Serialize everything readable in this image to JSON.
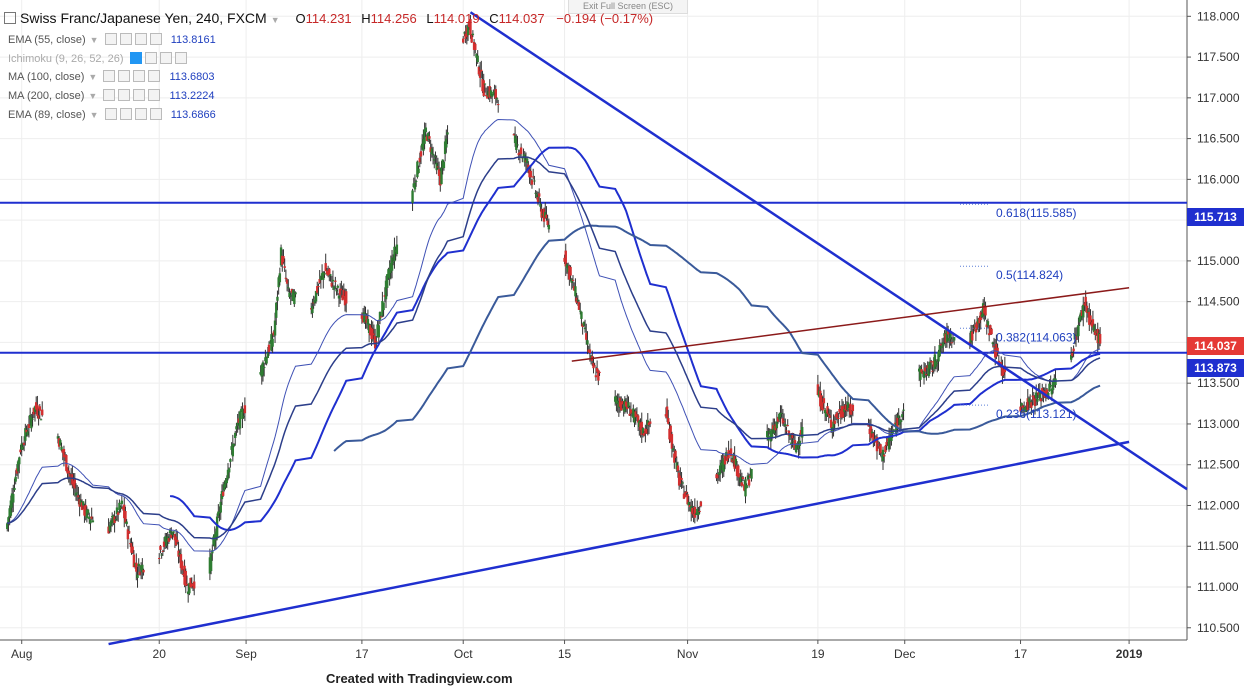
{
  "window": {
    "exit_fullscreen": "Exit Full Screen (ESC)",
    "footer": "Created with Tradingview.com"
  },
  "header": {
    "title": "Swiss Franc/Japanese Yen, 240, FXCM",
    "open_label": "O",
    "open": "114.231",
    "high_label": "H",
    "high": "114.256",
    "low_label": "L",
    "low": "114.019",
    "close_label": "C",
    "close": "114.037",
    "change": "−0.194 (−0.17%)"
  },
  "indicators": [
    {
      "name": "EMA (55, close)",
      "value": "113.8161"
    },
    {
      "name": "Ichimoku (9, 26, 52, 26)",
      "value": ""
    },
    {
      "name": "MA (100, close)",
      "value": "113.6803"
    },
    {
      "name": "MA (200, close)",
      "value": "113.2224"
    },
    {
      "name": "EMA (89, close)",
      "value": "113.6866"
    }
  ],
  "price_tags": [
    {
      "label": "115.713",
      "price": 115.713,
      "color": "#1f2fcf"
    },
    {
      "label": "114.037",
      "price": 114.037,
      "color": "#e53935"
    },
    {
      "label": "113.873",
      "price": 113.873,
      "color": "#1f2fcf"
    }
  ],
  "chart_data": {
    "type": "candlestick",
    "y_axis": {
      "ylim": [
        110.35,
        118.2
      ],
      "ticks": [
        "118.000",
        "117.500",
        "117.000",
        "116.500",
        "116.000",
        "115.500",
        "115.000",
        "114.500",
        "114.000",
        "113.500",
        "113.000",
        "112.500",
        "112.000",
        "111.500",
        "111.000",
        "110.500"
      ],
      "tick_values": [
        118.0,
        117.5,
        117.0,
        116.5,
        116.0,
        115.5,
        115.0,
        114.5,
        114.0,
        113.5,
        113.0,
        112.5,
        112.0,
        111.5,
        111.0,
        110.5
      ]
    },
    "x_axis": {
      "labels": [
        "Aug",
        "20",
        "Sep",
        "17",
        "Oct",
        "15",
        "Nov",
        "19",
        "Dec",
        "17",
        "2019"
      ],
      "label_dates": [
        "2018-08-01",
        "2018-08-20",
        "2018-09-01",
        "2018-09-17",
        "2018-10-01",
        "2018-10-15",
        "2018-11-01",
        "2018-11-19",
        "2018-12-01",
        "2018-12-17",
        "2019-01-01"
      ],
      "range": [
        "2018-07-29",
        "2019-01-09"
      ]
    },
    "close_path": [
      [
        "2018-07-30",
        111.7
      ],
      [
        "2018-08-01",
        112.7
      ],
      [
        "2018-08-03",
        113.2
      ],
      [
        "2018-08-06",
        112.9
      ],
      [
        "2018-08-08",
        112.3
      ],
      [
        "2018-08-10",
        111.9
      ],
      [
        "2018-08-13",
        111.7
      ],
      [
        "2018-08-15",
        112.0
      ],
      [
        "2018-08-17",
        111.2
      ],
      [
        "2018-08-20",
        111.4
      ],
      [
        "2018-08-22",
        111.7
      ],
      [
        "2018-08-24",
        111.0
      ],
      [
        "2018-08-27",
        111.2
      ],
      [
        "2018-08-29",
        112.2
      ],
      [
        "2018-08-31",
        113.0
      ],
      [
        "2018-09-03",
        113.6
      ],
      [
        "2018-09-05",
        114.1
      ],
      [
        "2018-09-06",
        115.1
      ],
      [
        "2018-09-07",
        114.6
      ],
      [
        "2018-09-10",
        114.4
      ],
      [
        "2018-09-12",
        114.9
      ],
      [
        "2018-09-14",
        114.6
      ],
      [
        "2018-09-17",
        114.4
      ],
      [
        "2018-09-19",
        114.0
      ],
      [
        "2018-09-21",
        114.9
      ],
      [
        "2018-09-24",
        115.8
      ],
      [
        "2018-09-26",
        116.6
      ],
      [
        "2018-09-28",
        116.0
      ],
      [
        "2018-10-01",
        117.7
      ],
      [
        "2018-10-02",
        117.9
      ],
      [
        "2018-10-04",
        117.1
      ],
      [
        "2018-10-06",
        117.0
      ],
      [
        "2018-10-08",
        116.5
      ],
      [
        "2018-10-10",
        116.2
      ],
      [
        "2018-10-12",
        115.6
      ],
      [
        "2018-10-15",
        115.1
      ],
      [
        "2018-10-17",
        114.5
      ],
      [
        "2018-10-19",
        113.7
      ],
      [
        "2018-10-22",
        113.3
      ],
      [
        "2018-10-24",
        113.2
      ],
      [
        "2018-10-26",
        112.9
      ],
      [
        "2018-10-29",
        113.2
      ],
      [
        "2018-10-31",
        112.3
      ],
      [
        "2018-11-02",
        111.9
      ],
      [
        "2018-11-05",
        112.3
      ],
      [
        "2018-11-07",
        112.7
      ],
      [
        "2018-11-09",
        112.2
      ],
      [
        "2018-11-12",
        112.8
      ],
      [
        "2018-11-14",
        113.1
      ],
      [
        "2018-11-16",
        112.7
      ],
      [
        "2018-11-19",
        113.4
      ],
      [
        "2018-11-21",
        113.0
      ],
      [
        "2018-11-23",
        113.2
      ],
      [
        "2018-11-26",
        113.0
      ],
      [
        "2018-11-28",
        112.6
      ],
      [
        "2018-11-30",
        113.0
      ],
      [
        "2018-12-03",
        113.6
      ],
      [
        "2018-12-05",
        113.7
      ],
      [
        "2018-12-07",
        114.1
      ],
      [
        "2018-12-10",
        114.0
      ],
      [
        "2018-12-12",
        114.4
      ],
      [
        "2018-12-14",
        113.8
      ],
      [
        "2018-12-17",
        113.2
      ],
      [
        "2018-12-19",
        113.3
      ],
      [
        "2018-12-21",
        113.4
      ],
      [
        "2018-12-24",
        113.8
      ],
      [
        "2018-12-26",
        114.5
      ],
      [
        "2018-12-27",
        114.2
      ],
      [
        "2018-12-28",
        114.04
      ]
    ],
    "moving_averages": [
      {
        "name": "EMA (55, close)",
        "value": 113.8161
      },
      {
        "name": "MA (100, close)",
        "value": 113.6803
      },
      {
        "name": "MA (200, close)",
        "value": 113.2224
      },
      {
        "name": "EMA (89, close)",
        "value": 113.6866
      }
    ],
    "fibonacci": [
      {
        "label": "0.618(115.585)",
        "price": 115.585
      },
      {
        "label": "0.5(114.824)",
        "price": 114.824
      },
      {
        "label": "0.382(114.063)",
        "price": 114.063
      },
      {
        "label": "0.236(113.121)",
        "price": 113.121
      }
    ],
    "horizontal_lines": [
      115.713,
      113.873
    ],
    "trendlines": [
      {
        "name": "descending",
        "from": [
          "2018-10-02",
          118.05
        ],
        "to": [
          "2019-01-09",
          112.2
        ]
      },
      {
        "name": "ascending",
        "from": [
          "2018-08-13",
          110.3
        ],
        "to": [
          "2019-01-01",
          112.78
        ]
      },
      {
        "name": "channel",
        "from": [
          "2018-10-16",
          113.77
        ],
        "to": [
          "2019-01-01",
          114.67
        ]
      }
    ],
    "grid": true
  }
}
